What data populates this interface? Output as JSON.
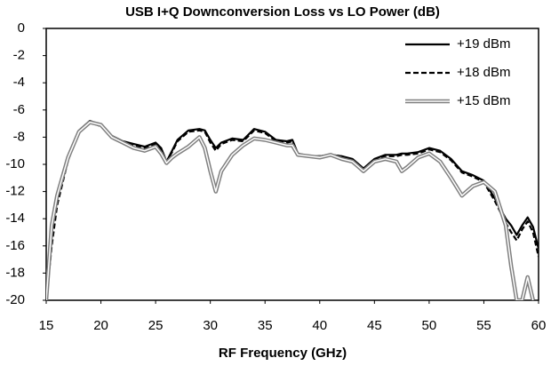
{
  "chart_data": {
    "type": "line",
    "title": "USB I+Q Downconversion Loss vs LO Power (dB)",
    "x_label": "RF Frequency  (GHz)",
    "x": [
      15,
      15.5,
      16,
      17,
      18,
      19,
      20,
      21,
      22,
      23,
      24,
      25,
      25.5,
      26,
      26.5,
      27,
      28,
      29,
      29.5,
      30,
      30.5,
      31,
      32,
      33,
      34,
      35,
      36,
      37,
      37.5,
      38,
      39,
      40,
      41,
      42,
      43,
      44,
      45,
      46,
      47,
      47.5,
      48,
      49,
      50,
      51,
      52,
      53,
      54,
      55,
      56,
      57,
      57.5,
      58,
      58.5,
      59,
      59.5,
      60
    ],
    "series": [
      {
        "name": "+19 dBm",
        "color": "#000000",
        "style": "solid",
        "values": [
          -19.5,
          -15,
          -12.5,
          -9.5,
          -7.5,
          -6.8,
          -7.1,
          -7.9,
          -8.3,
          -8.5,
          -8.7,
          -8.4,
          -8.8,
          -9.8,
          -9.0,
          -8.2,
          -7.5,
          -7.4,
          -7.5,
          -8.2,
          -8.8,
          -8.4,
          -8.1,
          -8.2,
          -7.4,
          -7.6,
          -8.2,
          -8.3,
          -8.2,
          -9.2,
          -9.4,
          -9.4,
          -9.3,
          -9.4,
          -9.6,
          -10.3,
          -9.6,
          -9.3,
          -9.3,
          -9.2,
          -9.2,
          -9.1,
          -8.8,
          -9.0,
          -9.6,
          -10.5,
          -10.8,
          -11.2,
          -12.5,
          -14.0,
          -14.5,
          -15.2,
          -14.5,
          -13.9,
          -14.6,
          -16.2
        ]
      },
      {
        "name": "+18 dBm",
        "color": "#000000",
        "style": "dashed",
        "values": [
          -20,
          -16,
          -13,
          -9.7,
          -7.6,
          -6.9,
          -7.2,
          -8.0,
          -8.4,
          -8.6,
          -8.8,
          -8.5,
          -8.9,
          -9.8,
          -9.1,
          -8.3,
          -7.6,
          -7.5,
          -7.6,
          -8.4,
          -9.0,
          -8.5,
          -8.2,
          -8.3,
          -7.5,
          -7.7,
          -8.3,
          -8.4,
          -8.3,
          -9.2,
          -9.4,
          -9.4,
          -9.3,
          -9.4,
          -9.7,
          -10.4,
          -9.7,
          -9.4,
          -9.4,
          -9.3,
          -9.3,
          -9.2,
          -8.9,
          -9.1,
          -9.7,
          -10.6,
          -10.9,
          -11.3,
          -12.7,
          -14.3,
          -15.0,
          -15.6,
          -14.8,
          -14.2,
          -15.0,
          -16.8
        ]
      },
      {
        "name": "+15 dBm",
        "color": "#808080",
        "style": "double",
        "values": [
          -20,
          -14.5,
          -12.3,
          -9.5,
          -7.6,
          -6.9,
          -7.1,
          -8.0,
          -8.4,
          -8.8,
          -9.0,
          -8.7,
          -9.2,
          -9.9,
          -9.5,
          -9.2,
          -8.7,
          -8.0,
          -8.8,
          -10.5,
          -12.0,
          -10.5,
          -9.3,
          -8.6,
          -8.1,
          -8.2,
          -8.4,
          -8.6,
          -8.6,
          -9.3,
          -9.4,
          -9.5,
          -9.3,
          -9.6,
          -9.8,
          -10.5,
          -9.8,
          -9.6,
          -9.8,
          -10.5,
          -10.2,
          -9.5,
          -9.2,
          -9.8,
          -11.0,
          -12.3,
          -11.6,
          -11.3,
          -12.0,
          -14.5,
          -17.5,
          -20,
          -20,
          -18.3,
          -20,
          null
        ]
      }
    ],
    "xlim": [
      15,
      60
    ],
    "xticks": [
      15,
      20,
      25,
      30,
      35,
      40,
      45,
      50,
      55,
      60
    ],
    "ylim": [
      -20,
      0
    ],
    "yticks": [
      0,
      -2,
      -4,
      -6,
      -8,
      -10,
      -12,
      -14,
      -16,
      -18,
      -20
    ],
    "grid": false,
    "legend": "upper right"
  }
}
